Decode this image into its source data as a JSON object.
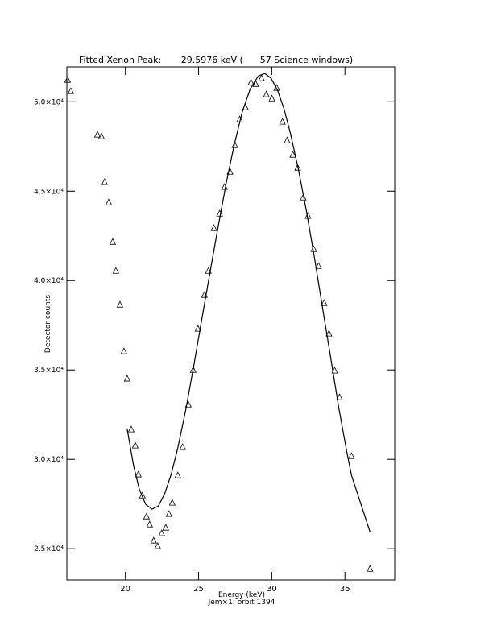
{
  "chart_data": {
    "type": "scatter",
    "title": "Fitted Xenon Peak:       29.5976 keV (      57 Science windows)",
    "x_label": "Energy (keV)",
    "y_label": "Detector counts",
    "subtitle": "Jem×1: orbit 1394",
    "xlim": [
      16,
      38.4
    ],
    "ylim": [
      23250,
      51950
    ],
    "xticks": [
      20,
      25,
      30,
      35
    ],
    "yticks": [
      {
        "value": 25000,
        "label": "2.5×10⁴"
      },
      {
        "value": 30000,
        "label": "3.0×10⁴"
      },
      {
        "value": 35000,
        "label": "3.5×10⁴"
      },
      {
        "value": 40000,
        "label": "4.0×10⁴"
      },
      {
        "value": 45000,
        "label": "4.5×10⁴"
      },
      {
        "value": 50000,
        "label": "5.0×10⁴"
      }
    ],
    "series": [
      {
        "type": "scatter",
        "color": "#000000",
        "x": [
          16.05,
          16.27,
          18.09,
          18.36,
          18.58,
          18.86,
          19.13,
          19.35,
          19.63,
          19.9,
          20.12,
          20.4,
          20.67,
          20.89,
          21.16,
          21.44,
          21.66,
          21.93,
          22.21,
          22.48,
          22.76,
          22.98,
          23.2,
          23.58,
          23.91,
          24.3,
          24.63,
          24.96,
          25.4,
          25.67,
          26.05,
          26.44,
          26.77,
          27.15,
          27.48,
          27.81,
          28.2,
          28.58,
          28.91,
          29.3,
          29.63,
          30.01,
          30.34,
          30.73,
          31.05,
          31.44,
          31.77,
          32.15,
          32.48,
          32.87,
          33.2,
          33.58,
          33.91,
          34.3,
          34.63,
          35.45,
          36.71
        ],
        "values": [
          51220,
          50590,
          48160,
          48070,
          45500,
          44370,
          42160,
          40540,
          38650,
          36040,
          34510,
          31670,
          30770,
          29150,
          27970,
          26800,
          26350,
          25450,
          25140,
          25860,
          26170,
          26940,
          27570,
          29100,
          30680,
          33060,
          35000,
          37300,
          39190,
          40540,
          42930,
          43740,
          45230,
          46080,
          47570,
          49010,
          49690,
          51080,
          50990,
          51310,
          50410,
          50180,
          50770,
          48880,
          47840,
          47030,
          46310,
          44640,
          43610,
          41760,
          40810,
          38740,
          37030,
          34960,
          33470,
          30180,
          23870
        ]
      },
      {
        "type": "line",
        "color": "#000000",
        "x": [
          20.12,
          20.56,
          20.95,
          21.38,
          21.82,
          22.26,
          22.7,
          23.14,
          23.58,
          24.13,
          24.68,
          25.23,
          25.78,
          26.33,
          26.88,
          27.43,
          27.98,
          28.53,
          29.08,
          29.52,
          29.96,
          30.4,
          30.84,
          31.27,
          31.82,
          32.37,
          32.92,
          33.47,
          34.02,
          34.57,
          35.12,
          35.45,
          36.71
        ],
        "values": [
          31710,
          29640,
          28330,
          27480,
          27210,
          27390,
          28110,
          29190,
          30630,
          32790,
          35270,
          37880,
          40450,
          42980,
          45410,
          47570,
          49420,
          50720,
          51440,
          51580,
          51310,
          50630,
          49600,
          48250,
          46220,
          43880,
          41260,
          38470,
          35720,
          32930,
          30450,
          29100,
          25950
        ]
      }
    ]
  }
}
